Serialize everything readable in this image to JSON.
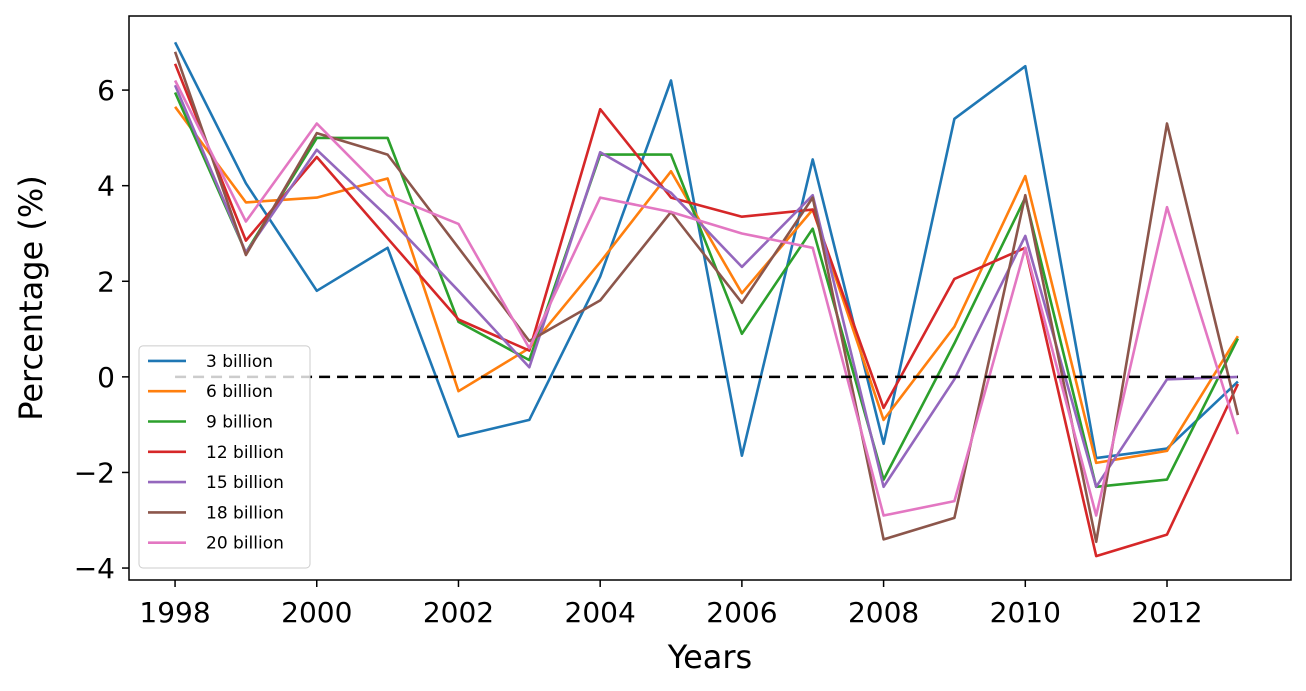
{
  "chart_data": {
    "type": "line",
    "title": "",
    "xlabel": "Years",
    "ylabel": "Percentage (%)",
    "x": [
      1998,
      1999,
      2000,
      2001,
      2002,
      2003,
      2004,
      2005,
      2006,
      2007,
      2008,
      2009,
      2010,
      2011,
      2012,
      2013
    ],
    "xticks": [
      1998,
      2000,
      2002,
      2004,
      2006,
      2008,
      2010,
      2012
    ],
    "yticks": [
      -4,
      -2,
      0,
      2,
      4,
      6
    ],
    "ytick_labels": [
      "−4",
      "−2",
      "0",
      "2",
      "4",
      "6"
    ],
    "xlim": [
      1997.35,
      2013.75
    ],
    "ylim": [
      -4.25,
      7.55
    ],
    "grid": false,
    "legend_position": "lower-left",
    "reference_line": {
      "y": 0,
      "style": "dashed",
      "color": "#000000"
    },
    "series": [
      {
        "name": "3 billion",
        "color": "#1f77b4",
        "values": [
          7.0,
          4.05,
          1.8,
          2.7,
          -1.25,
          -0.9,
          2.1,
          6.2,
          -1.65,
          4.55,
          -1.4,
          5.4,
          6.5,
          -1.7,
          -1.5,
          -0.1
        ]
      },
      {
        "name": "6 billion",
        "color": "#ff7f0e",
        "values": [
          5.65,
          3.65,
          3.75,
          4.15,
          -0.3,
          0.6,
          2.4,
          4.3,
          1.75,
          3.5,
          -0.9,
          1.05,
          4.2,
          -1.8,
          -1.55,
          0.85
        ]
      },
      {
        "name": "9 billion",
        "color": "#2ca02c",
        "values": [
          5.95,
          2.6,
          5.0,
          5.0,
          1.15,
          0.35,
          4.65,
          4.65,
          0.9,
          3.1,
          -2.15,
          0.7,
          3.75,
          -2.3,
          -2.15,
          0.8
        ]
      },
      {
        "name": "12 billion",
        "color": "#d62728",
        "values": [
          6.55,
          2.85,
          4.6,
          2.9,
          1.2,
          0.55,
          5.6,
          3.75,
          3.35,
          3.5,
          -0.65,
          2.05,
          2.7,
          -3.75,
          -3.3,
          -0.15
        ]
      },
      {
        "name": "15 billion",
        "color": "#9467bd",
        "values": [
          6.1,
          2.6,
          4.75,
          3.35,
          1.8,
          0.2,
          4.7,
          3.85,
          2.3,
          3.8,
          -2.3,
          -0.05,
          2.95,
          -2.3,
          -0.05,
          0.0
        ]
      },
      {
        "name": "18 billion",
        "color": "#8c564b",
        "values": [
          6.8,
          2.55,
          5.1,
          4.65,
          2.7,
          0.75,
          1.6,
          3.45,
          1.55,
          3.75,
          -3.4,
          -2.95,
          3.8,
          -3.45,
          5.3,
          -0.8
        ]
      },
      {
        "name": "20 billion",
        "color": "#e377c2",
        "values": [
          6.2,
          3.25,
          5.3,
          3.8,
          3.2,
          0.6,
          3.75,
          3.45,
          3.0,
          2.7,
          -2.9,
          -2.6,
          2.7,
          -2.9,
          3.55,
          -1.2
        ]
      }
    ]
  }
}
